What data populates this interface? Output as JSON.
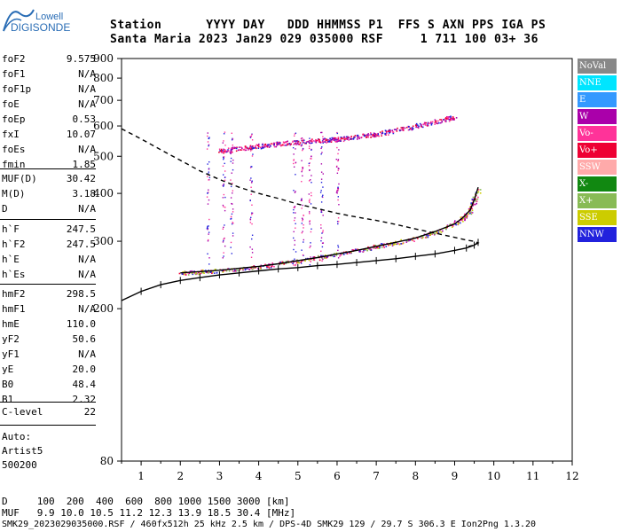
{
  "logo": {
    "line1": "Lowell",
    "line2": "DIGISONDE"
  },
  "header": {
    "labels": "Station      YYYY DAY   DDD HHMMSS P1  FFS S AXN PPS IGA PS",
    "values": "Santa Maria 2023 Jan29 029 035000 RSF     1 711 100 03+ 36"
  },
  "params_group1": [
    {
      "label": "foF2",
      "value": "9.575"
    },
    {
      "label": "foF1",
      "value": "N/A"
    },
    {
      "label": "foF1p",
      "value": "N/A"
    },
    {
      "label": "foE",
      "value": "N/A"
    },
    {
      "label": "foEp",
      "value": "0.53"
    },
    {
      "label": "fxI",
      "value": "10.07"
    },
    {
      "label": "foEs",
      "value": "N/A"
    },
    {
      "label": "fmin",
      "value": "1.85"
    }
  ],
  "params_group2": [
    {
      "label": "MUF(D)",
      "value": "30.42"
    },
    {
      "label": "M(D)",
      "value": "3.18"
    },
    {
      "label": "D",
      "value": "N/A"
    }
  ],
  "params_group3": [
    {
      "label": "h`F",
      "value": "247.5"
    },
    {
      "label": "h`F2",
      "value": "247.5"
    },
    {
      "label": "h`E",
      "value": "N/A"
    },
    {
      "label": "h`Es",
      "value": "N/A"
    }
  ],
  "params_group4": [
    {
      "label": "hmF2",
      "value": "298.5"
    },
    {
      "label": "hmF1",
      "value": "N/A"
    },
    {
      "label": "hmE",
      "value": "110.0"
    },
    {
      "label": "yF2",
      "value": "50.6"
    },
    {
      "label": "yF1",
      "value": "N/A"
    },
    {
      "label": "yE",
      "value": "20.0"
    },
    {
      "label": "B0",
      "value": "48.4"
    },
    {
      "label": "B1",
      "value": "2.32"
    }
  ],
  "params_group5": [
    {
      "label": "C-level",
      "value": "22"
    }
  ],
  "autoscaling": {
    "line1": "Auto:",
    "line2": "Artist5",
    "line3": "500200"
  },
  "legend": [
    {
      "label": "NoVal",
      "color": "#888888",
      "text_color": "#ffffff"
    },
    {
      "label": "NNE",
      "color": "#00e5ff",
      "text_color": "#ffffff"
    },
    {
      "label": "E",
      "color": "#3399ff",
      "text_color": "#ffffff"
    },
    {
      "label": "W",
      "color": "#aa00aa",
      "text_color": "#ffffff"
    },
    {
      "label": "Vo-",
      "color": "#ff3399",
      "text_color": "#ffffff"
    },
    {
      "label": "Vo+",
      "color": "#ee0033",
      "text_color": "#ffffff"
    },
    {
      "label": "SSW",
      "color": "#ffaaaa",
      "text_color": "#ffffff"
    },
    {
      "label": "X-",
      "color": "#118811",
      "text_color": "#ffffff"
    },
    {
      "label": "X+",
      "color": "#88bb55",
      "text_color": "#ffffff"
    },
    {
      "label": "SSE",
      "color": "#cccc00",
      "text_color": "#ffffff"
    },
    {
      "label": "NNW",
      "color": "#2222dd",
      "text_color": "#ffffff"
    }
  ],
  "footer": {
    "line1": "D     100  200  400  600  800 1000 1500 3000 [km]",
    "line2": "MUF   9.9 10.0 10.5 11.2 12.3 13.9 18.5 30.4 [MHz]",
    "line3": "SMK29_2023029035000.RSF / 460fx512h 25 kHz 2.5 km / DPS-4D SMK29 129 / 29.7 S 306.3 E Ion2Png 1.3.20"
  },
  "chart_data": {
    "type": "scatter",
    "title": "",
    "xlabel": "",
    "ylabel": "",
    "xlim": [
      0.5,
      12
    ],
    "ylim": [
      80,
      900
    ],
    "y_scale": "log",
    "x_ticks": [
      "1",
      "2",
      "3",
      "4",
      "5",
      "6",
      "7",
      "8",
      "9",
      "10",
      "11",
      "12"
    ],
    "y_ticks": [
      "80",
      "200",
      "300",
      "400",
      "500",
      "600",
      "700",
      "800",
      "900"
    ],
    "series": [
      {
        "style": "dashed-black",
        "x": [
          0.5,
          1.0,
          1.5,
          2.0,
          2.5,
          3.0,
          3.5,
          4.0,
          4.5,
          5.0,
          5.5,
          6.0,
          6.5,
          7.0,
          7.5,
          8.0,
          8.5,
          9.0,
          9.3,
          9.5,
          9.6,
          9.5,
          9.3
        ],
        "y": [
          590,
          555,
          520,
          488,
          458,
          435,
          415,
          400,
          388,
          375,
          365,
          355,
          347,
          340,
          332,
          323,
          315,
          307,
          302,
          300,
          297,
          293,
          290
        ]
      },
      {
        "style": "solid-black-crosses",
        "x": [
          0.5,
          1.0,
          1.5,
          2.0,
          2.5,
          3.0,
          3.5,
          4.0,
          4.5,
          5.0,
          5.5,
          6.0,
          6.5,
          7.0,
          7.5,
          8.0,
          8.5,
          9.0,
          9.3,
          9.5,
          9.6
        ],
        "y": [
          210,
          222,
          231,
          237,
          241,
          245,
          248,
          251,
          254,
          256,
          259,
          261,
          264,
          267,
          270,
          274,
          278,
          284,
          288,
          293,
          298
        ]
      },
      {
        "style": "solid-black",
        "x": [
          2.0,
          2.5,
          3.0,
          3.5,
          4.0,
          4.5,
          5.0,
          5.5,
          6.0,
          6.5,
          7.0,
          7.5,
          8.0,
          8.5,
          9.0,
          9.2,
          9.4,
          9.5,
          9.6
        ],
        "y": [
          248,
          250,
          252,
          255,
          258,
          262,
          267,
          272,
          278,
          284,
          291,
          298,
          306,
          318,
          333,
          345,
          362,
          385,
          415
        ]
      },
      {
        "style": "pink-echoes",
        "x": [
          3.0,
          3.5,
          4.0,
          4.5,
          5.0,
          5.5,
          6.0,
          6.5,
          7.0,
          7.5,
          8.0,
          8.5,
          9.0
        ],
        "y": [
          517,
          525,
          532,
          540,
          545,
          550,
          555,
          563,
          572,
          585,
          600,
          615,
          635
        ]
      }
    ]
  }
}
